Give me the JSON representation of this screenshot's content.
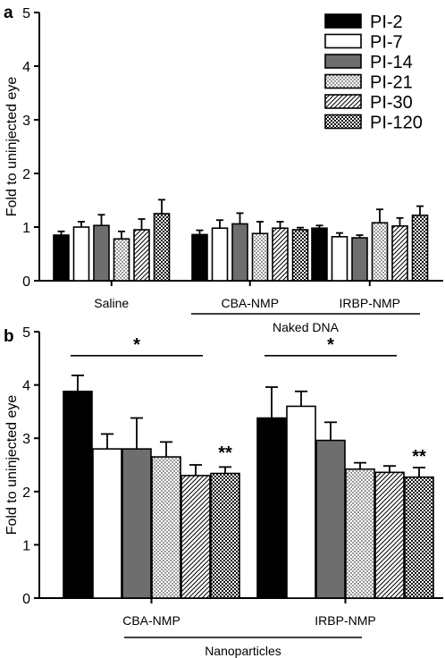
{
  "legend": [
    "PI-2",
    "PI-7",
    "PI-14",
    "PI-21",
    "PI-30",
    "PI-120"
  ],
  "colors": {
    "bar_black": "#000000",
    "bar_white": "#ffffff",
    "bar_gray": "#6e6e6e"
  },
  "chart_data": [
    {
      "type": "bar",
      "panel": "a",
      "ylabel": "Fold to uninjected eye",
      "ylim": [
        0,
        5
      ],
      "yticks": [
        0,
        1,
        2,
        3,
        4,
        5
      ],
      "categories": [
        "Saline",
        "CBA-NMP",
        "IRBP-NMP"
      ],
      "group_label": "Naked DNA",
      "group_covers": [
        "CBA-NMP",
        "IRBP-NMP"
      ],
      "legend_position": "top-right",
      "series": [
        {
          "name": "PI-2",
          "values": [
            0.85,
            0.86,
            0.98
          ],
          "errors": [
            0.07,
            0.08,
            0.05
          ]
        },
        {
          "name": "PI-7",
          "values": [
            1.0,
            0.98,
            0.82
          ],
          "errors": [
            0.1,
            0.15,
            0.07
          ]
        },
        {
          "name": "PI-14",
          "values": [
            1.03,
            1.06,
            0.8
          ],
          "errors": [
            0.2,
            0.2,
            0.05
          ]
        },
        {
          "name": "PI-21",
          "values": [
            0.78,
            0.88,
            1.08
          ],
          "errors": [
            0.14,
            0.22,
            0.25
          ]
        },
        {
          "name": "PI-30",
          "values": [
            0.95,
            0.98,
            1.02
          ],
          "errors": [
            0.2,
            0.12,
            0.15
          ]
        },
        {
          "name": "PI-120",
          "values": [
            1.25,
            0.95,
            1.22
          ],
          "errors": [
            0.26,
            0.04,
            0.17
          ]
        }
      ],
      "annotations": []
    },
    {
      "type": "bar",
      "panel": "b",
      "ylabel": "Fold to uninjected eye",
      "ylim": [
        0,
        5
      ],
      "yticks": [
        0,
        1,
        2,
        3,
        4,
        5
      ],
      "categories": [
        "CBA-NMP",
        "IRBP-NMP"
      ],
      "group_label": "Nanoparticles",
      "group_covers": [
        "CBA-NMP",
        "IRBP-NMP"
      ],
      "series": [
        {
          "name": "PI-2",
          "values": [
            3.88,
            3.38
          ],
          "errors": [
            0.3,
            0.58
          ]
        },
        {
          "name": "PI-7",
          "values": [
            2.8,
            3.6
          ],
          "errors": [
            0.28,
            0.28
          ]
        },
        {
          "name": "PI-14",
          "values": [
            2.8,
            2.96
          ],
          "errors": [
            0.58,
            0.34
          ]
        },
        {
          "name": "PI-21",
          "values": [
            2.65,
            2.42
          ],
          "errors": [
            0.28,
            0.12
          ]
        },
        {
          "name": "PI-30",
          "values": [
            2.3,
            2.36
          ],
          "errors": [
            0.2,
            0.12
          ]
        },
        {
          "name": "PI-120",
          "values": [
            2.34,
            2.27
          ],
          "errors": [
            0.12,
            0.18
          ]
        }
      ],
      "annotations": [
        {
          "text": "*",
          "category": 0,
          "from_series": 0,
          "to_series": 4,
          "y": 4.55
        },
        {
          "text": "**",
          "category": 0,
          "series": 5,
          "y": 2.62
        },
        {
          "text": "*",
          "category": 1,
          "from_series": 0,
          "to_series": 4,
          "y": 4.55
        },
        {
          "text": "**",
          "category": 1,
          "series": 5,
          "y": 2.55
        }
      ]
    }
  ]
}
